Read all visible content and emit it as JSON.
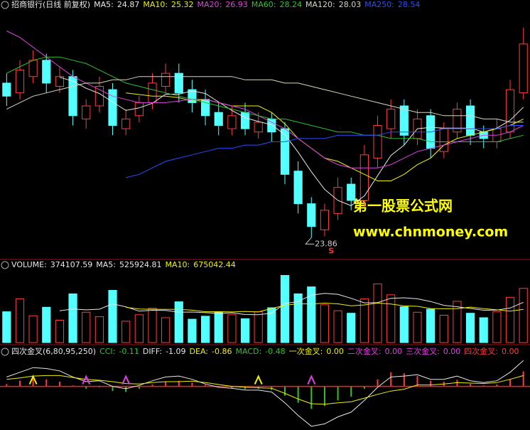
{
  "chart_data": [
    {
      "type": "candlestick",
      "title": "招商银行(日线 前复权)",
      "ylim": [
        23.3,
        30.8
      ],
      "up_color": "#ff3c3c",
      "down_color": "#54ffff",
      "open": [
        28.6,
        28.3,
        28.8,
        29.3,
        28.5,
        28.8,
        27.5,
        27.9,
        28.4,
        27.2,
        27.6,
        28.0,
        28.5,
        28.9,
        28.4,
        28.1,
        27.7,
        27.2,
        27.7,
        27.1,
        27.5,
        27.2,
        25.9,
        24.9,
        24.1,
        24.6,
        25.5,
        25.0,
        26.3,
        27.2,
        27.9,
        26.9,
        27.6,
        26.5,
        27.1,
        27.9,
        27.1,
        26.8,
        27.1,
        28.3
      ],
      "high": [
        28.9,
        29.3,
        29.6,
        29.5,
        29.1,
        29.0,
        28.1,
        28.8,
        28.6,
        27.8,
        28.2,
        28.9,
        29.2,
        29.2,
        28.7,
        28.4,
        28.0,
        27.9,
        28.0,
        27.7,
        27.7,
        27.4,
        26.2,
        25.1,
        24.9,
        25.7,
        25.7,
        26.7,
        27.6,
        28.1,
        28.1,
        27.8,
        27.8,
        27.4,
        28.0,
        28.1,
        27.3,
        27.5,
        28.7,
        30.3
      ],
      "low": [
        27.9,
        28.1,
        28.6,
        28.3,
        28.3,
        27.3,
        27.2,
        27.7,
        27.0,
        27.0,
        27.4,
        27.8,
        28.3,
        28.0,
        27.7,
        27.3,
        27.0,
        27.0,
        27.0,
        26.9,
        26.8,
        25.5,
        24.6,
        23.86,
        23.9,
        24.4,
        24.7,
        24.8,
        26.0,
        26.9,
        26.7,
        26.7,
        26.3,
        26.3,
        26.9,
        26.7,
        26.6,
        26.6,
        26.9,
        28.1
      ],
      "close": [
        28.2,
        29.0,
        29.3,
        28.6,
        28.8,
        27.6,
        27.9,
        28.5,
        27.3,
        27.5,
        28.0,
        28.6,
        28.9,
        28.3,
        28.0,
        27.6,
        27.3,
        27.6,
        27.2,
        27.4,
        27.1,
        25.8,
        24.9,
        24.2,
        24.7,
        25.4,
        25.0,
        26.4,
        27.3,
        27.8,
        27.0,
        27.5,
        26.6,
        27.2,
        27.8,
        27.0,
        26.9,
        27.2,
        28.4,
        29.8
      ],
      "series": [
        {
          "name": "MA5:",
          "current": 24.87,
          "color": "#e8e8e8",
          "values": [
            null,
            null,
            null,
            null,
            28.78,
            28.66,
            28.44,
            28.28,
            28.02,
            27.76,
            27.84,
            27.98,
            28.26,
            28.26,
            28.36,
            28.28,
            28.02,
            27.76,
            27.54,
            27.42,
            27.32,
            27.02,
            26.48,
            25.88,
            25.34,
            25.0,
            24.84,
            25.14,
            25.76,
            26.38,
            26.7,
            27.2,
            27.24,
            27.22,
            27.22,
            27.22,
            27.1,
            27.22,
            27.46,
            27.86
          ]
        },
        {
          "name": "MA10:",
          "current": 25.32,
          "color": "#f0f000",
          "values": [
            null,
            null,
            null,
            null,
            null,
            null,
            null,
            null,
            null,
            28.3,
            28.25,
            28.2,
            28.2,
            28.15,
            28.05,
            28.1,
            28.0,
            27.9,
            27.9,
            27.9,
            27.7,
            27.35,
            26.9,
            26.6,
            26.3,
            26.2,
            26.0,
            25.8,
            25.6,
            25.6,
            25.8,
            26.1,
            26.3,
            26.7,
            26.9,
            27.0,
            27.1,
            27.2,
            27.3,
            27.5
          ]
        },
        {
          "name": "MA20:",
          "current": 26.93,
          "color": "#e040e0",
          "values": [
            30.2,
            30.0,
            29.7,
            29.4,
            29.1,
            28.8,
            28.6,
            28.4,
            28.2,
            28.1,
            28.0,
            28.0,
            28.0,
            28.05,
            28.1,
            28.1,
            28.0,
            27.9,
            27.8,
            27.6,
            27.4,
            27.2,
            26.9,
            26.6,
            26.3,
            26.1,
            26.0,
            26.0,
            26.0,
            26.1,
            26.3,
            26.5,
            26.6,
            26.7,
            26.8,
            26.9,
            27.0,
            27.0,
            27.1,
            27.3
          ]
        },
        {
          "name": "MA60:",
          "current": 28.24,
          "color": "#30c030",
          "values": [
            28.9,
            29.1,
            29.3,
            29.4,
            29.4,
            29.3,
            29.2,
            29.0,
            28.8,
            28.6,
            28.5,
            28.4,
            28.3,
            28.2,
            28.1,
            28.0,
            27.9,
            27.8,
            27.7,
            27.6,
            27.5,
            27.5,
            27.4,
            27.3,
            27.2,
            27.1,
            27.1,
            27.0,
            27.0,
            26.9,
            26.9,
            26.9,
            26.8,
            26.8,
            26.8,
            26.8,
            26.8,
            26.8,
            26.9,
            27.0
          ]
        },
        {
          "name": "MA120:",
          "current": 28.03,
          "color": "#d8d8c0",
          "values": [
            27.8,
            28.0,
            28.2,
            28.3,
            28.4,
            28.5,
            28.6,
            28.6,
            28.7,
            28.7,
            28.8,
            28.8,
            28.8,
            28.8,
            28.8,
            28.8,
            28.8,
            28.8,
            28.7,
            28.7,
            28.7,
            28.6,
            28.6,
            28.5,
            28.4,
            28.3,
            28.2,
            28.1,
            28.0,
            27.9,
            27.8,
            27.7,
            27.7,
            27.6,
            27.6,
            27.6,
            27.5,
            27.5,
            27.4,
            27.4
          ]
        },
        {
          "name": "MA250:",
          "current": 28.54,
          "color": "#2a4cff",
          "values": [
            null,
            null,
            null,
            null,
            null,
            null,
            null,
            null,
            null,
            25.7,
            25.8,
            26.0,
            26.2,
            26.3,
            26.4,
            26.5,
            26.6,
            26.6,
            26.7,
            26.7,
            26.8,
            26.8,
            26.9,
            26.9,
            26.9,
            27.0,
            27.0,
            27.0,
            27.0,
            27.1,
            27.1,
            27.1,
            27.1,
            27.2,
            27.2,
            27.2,
            27.2,
            27.2,
            27.3,
            27.3
          ]
        }
      ],
      "min_label": 23.86,
      "signal": "S",
      "watermark": [
        "第一股票公式网",
        "www.chnmoney.com"
      ]
    },
    {
      "type": "bar",
      "ylim": [
        0,
        1400000
      ],
      "series": [
        {
          "name": "VOLUME:",
          "current": 374107.59,
          "color": "#e8e8e8",
          "values": [
            620000,
            880000,
            540000,
            710000,
            450000,
            980000,
            610000,
            520000,
            1050000,
            430000,
            560000,
            690000,
            500000,
            820000,
            470000,
            530000,
            610000,
            560000,
            480000,
            620000,
            700000,
            1350000,
            980000,
            1120000,
            760000,
            640000,
            590000,
            880000,
            1180000,
            960000,
            720000,
            610000,
            670000,
            550000,
            830000,
            590000,
            500000,
            620000,
            910000,
            1090000
          ]
        },
        {
          "name": "MA5:",
          "current": 525924.81,
          "color": "#e8e8e8",
          "values": [
            null,
            null,
            null,
            null,
            640000,
            676000,
            658000,
            672000,
            778000,
            718000,
            632000,
            650000,
            646000,
            610000,
            614000,
            602000,
            586000,
            598000,
            564000,
            562000,
            592000,
            784000,
            826000,
            954000,
            990000,
            970000,
            890000,
            798000,
            804000,
            890000,
            900000,
            880000,
            826000,
            748000,
            720000,
            686000,
            650000,
            654000,
            694000,
            810000
          ]
        },
        {
          "name": "MA10:",
          "current": 675042.44,
          "color": "#f0f000",
          "values": [
            null,
            null,
            null,
            null,
            null,
            null,
            null,
            null,
            null,
            709000,
            676000,
            670000,
            668000,
            669000,
            651000,
            620000,
            622000,
            616000,
            626000,
            615000,
            686000,
            749000,
            782000,
            774000,
            793000,
            779000,
            739000,
            757000,
            794000,
            776000,
            737000,
            729000,
            685000,
            680000,
            681000,
            713000,
            681000,
            659000,
            632000,
            669000
          ]
        }
      ]
    },
    {
      "type": "macd",
      "title": "四次金叉(6,80,95,250)",
      "ylim": [
        -0.9,
        0.6
      ],
      "series": [
        {
          "name": "CCI:",
          "current": -0.11,
          "color": "#30c030"
        },
        {
          "name": "DIFF:",
          "current": -1.09,
          "color": "#e8e8e8",
          "values": [
            0.2,
            0.3,
            0.4,
            0.38,
            0.33,
            0.2,
            0.1,
            0.12,
            0.0,
            -0.05,
            0.02,
            0.12,
            0.2,
            0.22,
            0.15,
            0.05,
            -0.02,
            -0.04,
            -0.08,
            -0.08,
            -0.12,
            -0.35,
            -0.62,
            -0.85,
            -0.8,
            -0.65,
            -0.55,
            -0.3,
            -0.02,
            0.2,
            0.22,
            0.25,
            0.15,
            0.15,
            0.22,
            0.12,
            0.08,
            0.12,
            0.3,
            0.55
          ]
        },
        {
          "name": "DEA:",
          "current": -0.86,
          "color": "#f0f000",
          "values": [
            0.15,
            0.18,
            0.22,
            0.23,
            0.23,
            0.19,
            0.15,
            0.13,
            0.1,
            0.06,
            0.05,
            0.08,
            0.1,
            0.1,
            0.11,
            0.08,
            0.04,
            0.0,
            -0.02,
            -0.03,
            -0.04,
            -0.15,
            -0.27,
            -0.37,
            -0.38,
            -0.35,
            -0.33,
            -0.25,
            -0.17,
            -0.1,
            -0.06,
            0.03,
            0.03,
            0.05,
            0.08,
            0.07,
            0.06,
            0.08,
            0.15,
            0.23
          ]
        },
        {
          "name": "MACD:",
          "current": -0.48,
          "color": "#30c030",
          "bars": [
            0.05,
            0.12,
            0.18,
            0.15,
            0.1,
            0.02,
            -0.05,
            -0.02,
            -0.1,
            -0.12,
            -0.05,
            0.04,
            0.1,
            0.12,
            0.08,
            0.03,
            -0.02,
            -0.04,
            -0.06,
            -0.05,
            -0.08,
            -0.2,
            -0.35,
            -0.48,
            -0.42,
            -0.3,
            -0.22,
            -0.05,
            0.15,
            0.3,
            0.28,
            0.22,
            0.12,
            0.1,
            0.14,
            0.05,
            0.02,
            0.04,
            0.15,
            0.32
          ]
        },
        {
          "name": "一次金叉:",
          "current": 0,
          "current_label": "0.00",
          "color": "#f0f000",
          "signals": [
            2,
            19
          ]
        },
        {
          "name": "二次金叉:",
          "current": 0,
          "current_label": "0.00",
          "color": "#e040e0",
          "signals": [
            6,
            9,
            23
          ]
        },
        {
          "name": "三次金叉:",
          "current": 0,
          "current_label": "0.00",
          "color": "#e040e0"
        },
        {
          "name": "四次金叉:",
          "current": 0,
          "current_label": "0.00",
          "color": "#ff3c3c"
        }
      ]
    }
  ]
}
